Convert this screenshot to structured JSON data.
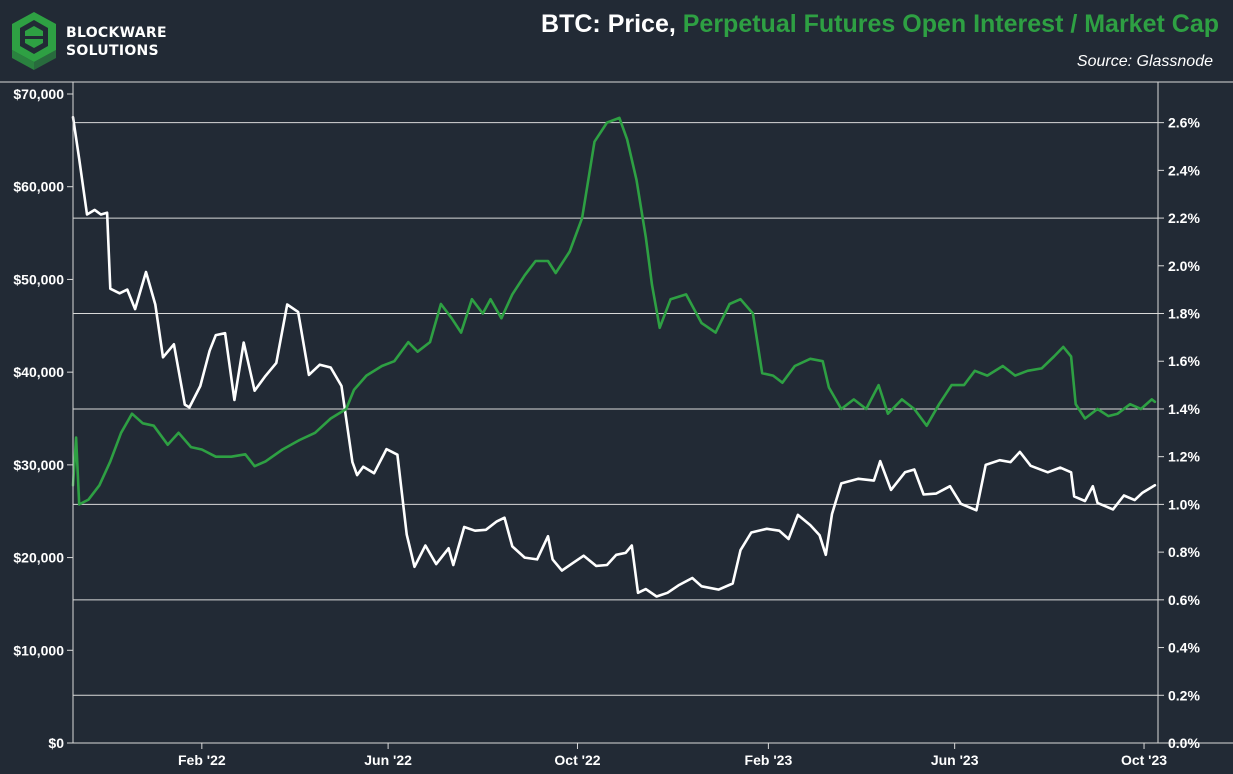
{
  "brand": {
    "line1": "BLOCKWARE",
    "line2": "SOLUTIONS",
    "logo_icon": "blockware-hexagon-logo-icon"
  },
  "header": {
    "title_part1": "BTC: Price, ",
    "title_part2": "Perpetual Futures Open Interest / Market Cap",
    "source": "Source: Glassnode"
  },
  "colors": {
    "background": "#222a35",
    "price": "#ffffff",
    "ratio": "#2ea043",
    "grid": "#d9d9d9"
  },
  "chart_data": {
    "type": "line",
    "title": "BTC: Price, Perpetual Futures Open Interest / Market Cap",
    "x_tick_labels": [
      "Feb '22",
      "Jun '22",
      "Oct '22",
      "Feb '23",
      "Jun '23",
      "Oct '23"
    ],
    "x_ticks": [
      "2022-02-01",
      "2022-06-01",
      "2022-10-01",
      "2023-02-01",
      "2023-06-01",
      "2023-10-01"
    ],
    "xlim": [
      "2021-11-10",
      "2023-10-10"
    ],
    "y_left": {
      "ylim": [
        0,
        70000
      ],
      "ticks": [
        0,
        10000,
        20000,
        30000,
        40000,
        50000,
        60000,
        70000
      ],
      "tick_labels": [
        "$0",
        "$10,000",
        "$20,000",
        "$30,000",
        "$40,000",
        "$50,000",
        "$60,000",
        "$70,000"
      ]
    },
    "y_right": {
      "ylim": [
        0,
        2.72
      ],
      "ticks": [
        0,
        0.2,
        0.4,
        0.6,
        0.8,
        1.0,
        1.2,
        1.4,
        1.6,
        1.8,
        2.0,
        2.2,
        2.4,
        2.6
      ],
      "tick_labels": [
        "0.0%",
        "0.2%",
        "0.4%",
        "0.6%",
        "0.8%",
        "1.0%",
        "1.2%",
        "1.4%",
        "1.6%",
        "1.8%",
        "2.0%",
        "2.2%",
        "2.4%",
        "2.6%"
      ]
    },
    "grid": true,
    "series": [
      {
        "axis": "left",
        "color": "#ffffff",
        "points": [
          [
            "2021-11-10",
            67500
          ],
          [
            "2021-11-14",
            63000
          ],
          [
            "2021-11-19",
            57000
          ],
          [
            "2021-11-24",
            57500
          ],
          [
            "2021-11-28",
            57000
          ],
          [
            "2021-12-02",
            57200
          ],
          [
            "2021-12-04",
            49000
          ],
          [
            "2021-12-10",
            48500
          ],
          [
            "2021-12-15",
            48900
          ],
          [
            "2021-12-20",
            46800
          ],
          [
            "2021-12-27",
            50800
          ],
          [
            "2022-01-02",
            47300
          ],
          [
            "2022-01-07",
            41600
          ],
          [
            "2022-01-14",
            43000
          ],
          [
            "2022-01-21",
            36500
          ],
          [
            "2022-01-24",
            36200
          ],
          [
            "2022-01-31",
            38500
          ],
          [
            "2022-02-06",
            42300
          ],
          [
            "2022-02-10",
            44000
          ],
          [
            "2022-02-16",
            44200
          ],
          [
            "2022-02-22",
            37000
          ],
          [
            "2022-02-28",
            43200
          ],
          [
            "2022-03-07",
            38000
          ],
          [
            "2022-03-14",
            39600
          ],
          [
            "2022-03-21",
            41000
          ],
          [
            "2022-03-28",
            47300
          ],
          [
            "2022-04-04",
            46500
          ],
          [
            "2022-04-11",
            39700
          ],
          [
            "2022-04-18",
            40800
          ],
          [
            "2022-04-25",
            40500
          ],
          [
            "2022-05-02",
            38500
          ],
          [
            "2022-05-09",
            30300
          ],
          [
            "2022-05-12",
            28900
          ],
          [
            "2022-05-16",
            29800
          ],
          [
            "2022-05-23",
            29100
          ],
          [
            "2022-05-31",
            31700
          ],
          [
            "2022-06-07",
            31100
          ],
          [
            "2022-06-13",
            22500
          ],
          [
            "2022-06-18",
            19000
          ],
          [
            "2022-06-25",
            21300
          ],
          [
            "2022-07-02",
            19300
          ],
          [
            "2022-07-10",
            21000
          ],
          [
            "2022-07-13",
            19200
          ],
          [
            "2022-07-20",
            23300
          ],
          [
            "2022-07-27",
            22900
          ],
          [
            "2022-08-03",
            23000
          ],
          [
            "2022-08-10",
            23900
          ],
          [
            "2022-08-15",
            24300
          ],
          [
            "2022-08-20",
            21200
          ],
          [
            "2022-08-28",
            20000
          ],
          [
            "2022-09-05",
            19800
          ],
          [
            "2022-09-12",
            22300
          ],
          [
            "2022-09-15",
            19800
          ],
          [
            "2022-09-21",
            18600
          ],
          [
            "2022-09-28",
            19400
          ],
          [
            "2022-10-05",
            20200
          ],
          [
            "2022-10-13",
            19100
          ],
          [
            "2022-10-20",
            19200
          ],
          [
            "2022-10-26",
            20300
          ],
          [
            "2022-11-01",
            20500
          ],
          [
            "2022-11-05",
            21300
          ],
          [
            "2022-11-09",
            16200
          ],
          [
            "2022-11-14",
            16600
          ],
          [
            "2022-11-21",
            15800
          ],
          [
            "2022-11-28",
            16200
          ],
          [
            "2022-12-05",
            17000
          ],
          [
            "2022-12-14",
            17800
          ],
          [
            "2022-12-20",
            16900
          ],
          [
            "2022-12-31",
            16550
          ],
          [
            "2023-01-09",
            17200
          ],
          [
            "2023-01-14",
            20800
          ],
          [
            "2023-01-21",
            22700
          ],
          [
            "2023-01-31",
            23100
          ],
          [
            "2023-02-08",
            22900
          ],
          [
            "2023-02-14",
            22000
          ],
          [
            "2023-02-20",
            24600
          ],
          [
            "2023-02-28",
            23500
          ],
          [
            "2023-03-06",
            22400
          ],
          [
            "2023-03-10",
            20300
          ],
          [
            "2023-03-14",
            24700
          ],
          [
            "2023-03-20",
            28000
          ],
          [
            "2023-03-31",
            28500
          ],
          [
            "2023-04-10",
            28300
          ],
          [
            "2023-04-14",
            30400
          ],
          [
            "2023-04-21",
            27300
          ],
          [
            "2023-04-30",
            29200
          ],
          [
            "2023-05-06",
            29500
          ],
          [
            "2023-05-12",
            26800
          ],
          [
            "2023-05-20",
            26900
          ],
          [
            "2023-05-29",
            27700
          ],
          [
            "2023-06-05",
            25800
          ],
          [
            "2023-06-15",
            25100
          ],
          [
            "2023-06-21",
            30000
          ],
          [
            "2023-06-30",
            30500
          ],
          [
            "2023-07-07",
            30300
          ],
          [
            "2023-07-13",
            31400
          ],
          [
            "2023-07-20",
            29900
          ],
          [
            "2023-07-31",
            29200
          ],
          [
            "2023-08-08",
            29700
          ],
          [
            "2023-08-15",
            29200
          ],
          [
            "2023-08-17",
            26600
          ],
          [
            "2023-08-24",
            26100
          ],
          [
            "2023-08-29",
            27700
          ],
          [
            "2023-09-01",
            25900
          ],
          [
            "2023-09-11",
            25200
          ],
          [
            "2023-09-18",
            26700
          ],
          [
            "2023-09-25",
            26200
          ],
          [
            "2023-09-30",
            27000
          ],
          [
            "2023-10-04",
            27400
          ],
          [
            "2023-10-08",
            27800
          ]
        ]
      },
      {
        "axis": "right",
        "color": "#2ea043",
        "points": [
          [
            "2021-11-10",
            1.08
          ],
          [
            "2021-11-12",
            1.28
          ],
          [
            "2021-11-14",
            1.0
          ],
          [
            "2021-11-20",
            1.02
          ],
          [
            "2021-11-27",
            1.08
          ],
          [
            "2021-12-04",
            1.18
          ],
          [
            "2021-12-11",
            1.3
          ],
          [
            "2021-12-18",
            1.38
          ],
          [
            "2021-12-25",
            1.34
          ],
          [
            "2022-01-01",
            1.33
          ],
          [
            "2022-01-10",
            1.25
          ],
          [
            "2022-01-17",
            1.3
          ],
          [
            "2022-01-25",
            1.24
          ],
          [
            "2022-02-01",
            1.23
          ],
          [
            "2022-02-10",
            1.2
          ],
          [
            "2022-02-20",
            1.2
          ],
          [
            "2022-03-01",
            1.21
          ],
          [
            "2022-03-07",
            1.16
          ],
          [
            "2022-03-14",
            1.18
          ],
          [
            "2022-03-25",
            1.23
          ],
          [
            "2022-04-05",
            1.27
          ],
          [
            "2022-04-15",
            1.3
          ],
          [
            "2022-04-25",
            1.36
          ],
          [
            "2022-05-05",
            1.4
          ],
          [
            "2022-05-10",
            1.48
          ],
          [
            "2022-05-18",
            1.54
          ],
          [
            "2022-05-28",
            1.58
          ],
          [
            "2022-06-05",
            1.6
          ],
          [
            "2022-06-14",
            1.68
          ],
          [
            "2022-06-20",
            1.64
          ],
          [
            "2022-06-28",
            1.68
          ],
          [
            "2022-07-05",
            1.84
          ],
          [
            "2022-07-12",
            1.78
          ],
          [
            "2022-07-18",
            1.72
          ],
          [
            "2022-07-25",
            1.86
          ],
          [
            "2022-08-01",
            1.8
          ],
          [
            "2022-08-06",
            1.86
          ],
          [
            "2022-08-13",
            1.78
          ],
          [
            "2022-08-20",
            1.88
          ],
          [
            "2022-08-28",
            1.96
          ],
          [
            "2022-09-04",
            2.02
          ],
          [
            "2022-09-12",
            2.02
          ],
          [
            "2022-09-17",
            1.97
          ],
          [
            "2022-09-26",
            2.06
          ],
          [
            "2022-10-04",
            2.2
          ],
          [
            "2022-10-12",
            2.52
          ],
          [
            "2022-10-20",
            2.6
          ],
          [
            "2022-10-28",
            2.62
          ],
          [
            "2022-11-02",
            2.53
          ],
          [
            "2022-11-08",
            2.36
          ],
          [
            "2022-11-14",
            2.12
          ],
          [
            "2022-11-18",
            1.92
          ],
          [
            "2022-11-23",
            1.74
          ],
          [
            "2022-11-30",
            1.86
          ],
          [
            "2022-12-10",
            1.88
          ],
          [
            "2022-12-20",
            1.76
          ],
          [
            "2022-12-29",
            1.72
          ],
          [
            "2023-01-07",
            1.84
          ],
          [
            "2023-01-14",
            1.86
          ],
          [
            "2023-01-22",
            1.8
          ],
          [
            "2023-01-28",
            1.55
          ],
          [
            "2023-02-04",
            1.54
          ],
          [
            "2023-02-10",
            1.51
          ],
          [
            "2023-02-18",
            1.58
          ],
          [
            "2023-02-28",
            1.61
          ],
          [
            "2023-03-08",
            1.6
          ],
          [
            "2023-03-12",
            1.49
          ],
          [
            "2023-03-20",
            1.4
          ],
          [
            "2023-03-28",
            1.44
          ],
          [
            "2023-04-05",
            1.4
          ],
          [
            "2023-04-13",
            1.5
          ],
          [
            "2023-04-19",
            1.38
          ],
          [
            "2023-04-28",
            1.44
          ],
          [
            "2023-05-06",
            1.4
          ],
          [
            "2023-05-14",
            1.33
          ],
          [
            "2023-05-22",
            1.42
          ],
          [
            "2023-05-30",
            1.5
          ],
          [
            "2023-06-07",
            1.5
          ],
          [
            "2023-06-14",
            1.56
          ],
          [
            "2023-06-22",
            1.54
          ],
          [
            "2023-07-02",
            1.58
          ],
          [
            "2023-07-10",
            1.54
          ],
          [
            "2023-07-18",
            1.56
          ],
          [
            "2023-07-27",
            1.57
          ],
          [
            "2023-08-04",
            1.62
          ],
          [
            "2023-08-10",
            1.66
          ],
          [
            "2023-08-15",
            1.62
          ],
          [
            "2023-08-18",
            1.42
          ],
          [
            "2023-08-24",
            1.36
          ],
          [
            "2023-09-01",
            1.4
          ],
          [
            "2023-09-08",
            1.37
          ],
          [
            "2023-09-14",
            1.38
          ],
          [
            "2023-09-22",
            1.42
          ],
          [
            "2023-09-29",
            1.4
          ],
          [
            "2023-10-06",
            1.44
          ],
          [
            "2023-10-08",
            1.43
          ]
        ]
      }
    ]
  }
}
